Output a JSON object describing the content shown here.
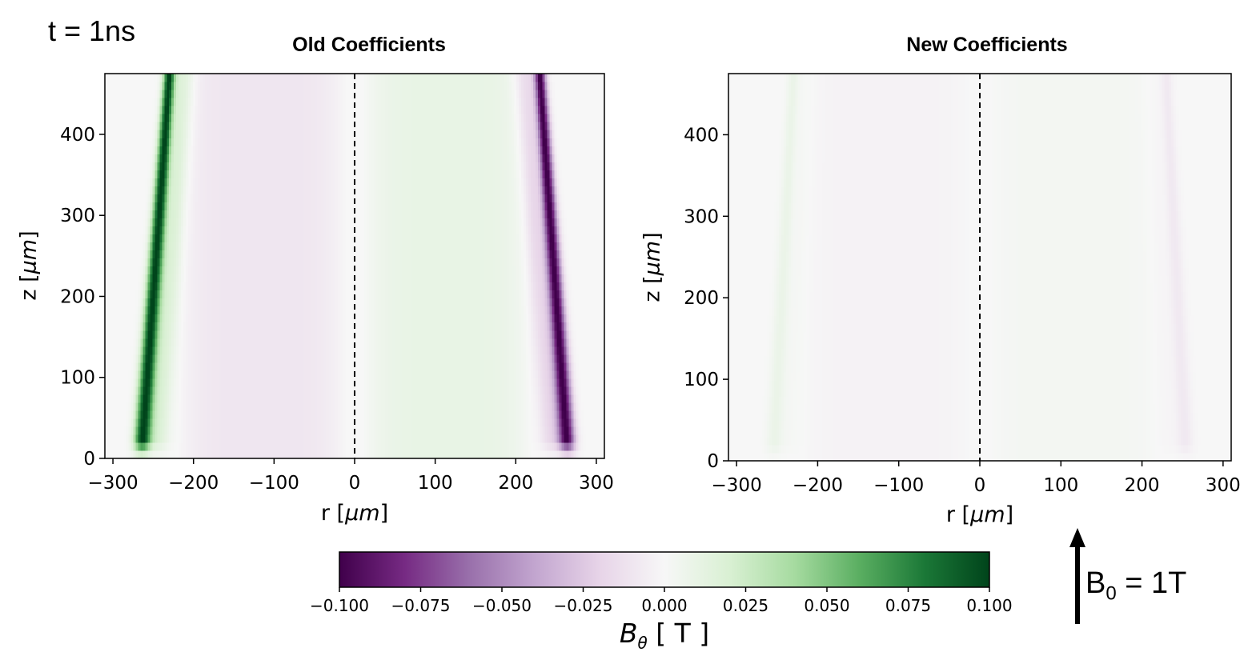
{
  "figure": {
    "time_label": "t = 1ns",
    "b0_label": "B",
    "b0_sub": "0",
    "b0_value": " = 1T"
  },
  "colorbar": {
    "label_symbol": "B",
    "label_sub": "θ",
    "label_unit": " [ T ]",
    "ticks": [
      "−0.100",
      "−0.075",
      "−0.050",
      "−0.025",
      "0.000",
      "0.025",
      "0.050",
      "0.075",
      "0.100"
    ],
    "colors": [
      "#40004b",
      "#762a83",
      "#9970ab",
      "#c2a5cf",
      "#e7d4e8",
      "#f7f7f7",
      "#d9f0d3",
      "#a6dba0",
      "#5aae61",
      "#1b7837",
      "#00441b"
    ]
  },
  "chart_data": [
    {
      "type": "heatmap",
      "title": "Old Coefficients",
      "xlabel_text": "r [",
      "xlabel_unit": "μm",
      "xlabel_end": "]",
      "ylabel_text": "z [",
      "ylabel_unit": "μm",
      "ylabel_end": "]",
      "xlim": [
        -310,
        310
      ],
      "ylim": [
        0,
        475
      ],
      "xticks": [
        -300,
        -200,
        -100,
        0,
        100,
        200,
        300
      ],
      "xtick_labels": [
        "−300",
        "−200",
        "−100",
        "0",
        "100",
        "200",
        "300"
      ],
      "yticks": [
        0,
        100,
        200,
        300,
        400
      ],
      "ytick_labels": [
        "0",
        "100",
        "200",
        "300",
        "400"
      ],
      "center_line_r": 0,
      "colormap": "PRGn",
      "clim": [
        -0.1,
        0.1
      ],
      "features": {
        "edge_strip_peak": 0.1,
        "edge_r_bottom": 265,
        "edge_r_top": 230,
        "inner_lobe_value": 0.01,
        "inner_lobe_r_range": [
          20,
          210
        ]
      }
    },
    {
      "type": "heatmap",
      "title": "New Coefficients",
      "xlabel_text": "r [",
      "xlabel_unit": "μm",
      "xlabel_end": "]",
      "ylabel_text": "z [",
      "ylabel_unit": "μm",
      "ylabel_end": "]",
      "xlim": [
        -310,
        310
      ],
      "ylim": [
        0,
        475
      ],
      "xticks": [
        -300,
        -200,
        -100,
        0,
        100,
        200,
        300
      ],
      "xtick_labels": [
        "−300",
        "−200",
        "−100",
        "0",
        "100",
        "200",
        "300"
      ],
      "yticks": [
        0,
        100,
        200,
        300,
        400
      ],
      "ytick_labels": [
        "0",
        "100",
        "200",
        "300",
        "400"
      ],
      "center_line_r": 0,
      "colormap": "PRGn",
      "clim": [
        -0.1,
        0.1
      ],
      "features": {
        "edge_strip_peak": 0.008,
        "edge_r_bottom": 255,
        "edge_r_top": 230,
        "inner_lobe_value": 0.003,
        "inner_lobe_r_range": [
          20,
          210
        ]
      }
    }
  ]
}
